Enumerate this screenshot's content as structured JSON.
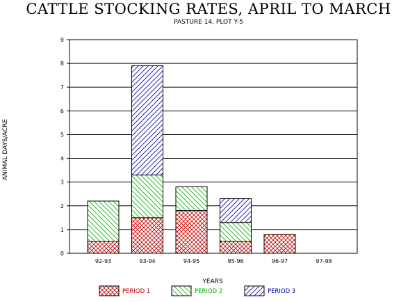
{
  "chart_data": {
    "type": "bar",
    "stacked": true,
    "title": "CATTLE STOCKING RATES, APRIL TO MARCH",
    "subtitle": "PASTURE 14, PLOT Y-5",
    "xlabel": "YEARS",
    "ylabel": "ANIMAL DAYS/ACRE",
    "ylim": [
      0,
      9
    ],
    "yticks": [
      "0",
      "1",
      "2",
      "3",
      "4",
      "5",
      "6",
      "7",
      "8",
      "9"
    ],
    "grid": "horizontal",
    "legend_position": "bottom",
    "categories": [
      "92-93",
      "93-94",
      "94-95",
      "95-96",
      "96-97",
      "97-98"
    ],
    "series": [
      {
        "name": "PERIOD 1",
        "color": "#c00000",
        "pattern": "crosshatch",
        "values": [
          0.5,
          1.5,
          1.8,
          0.5,
          0.8,
          0
        ]
      },
      {
        "name": "PERIOD 2",
        "color": "#00b000",
        "pattern": "diagonal-down",
        "values": [
          1.7,
          1.8,
          1.0,
          0.8,
          0,
          0
        ]
      },
      {
        "name": "PERIOD 3",
        "color": "#0000a0",
        "pattern": "diagonal-up",
        "values": [
          0,
          4.6,
          0,
          1.0,
          0,
          0
        ]
      }
    ]
  }
}
